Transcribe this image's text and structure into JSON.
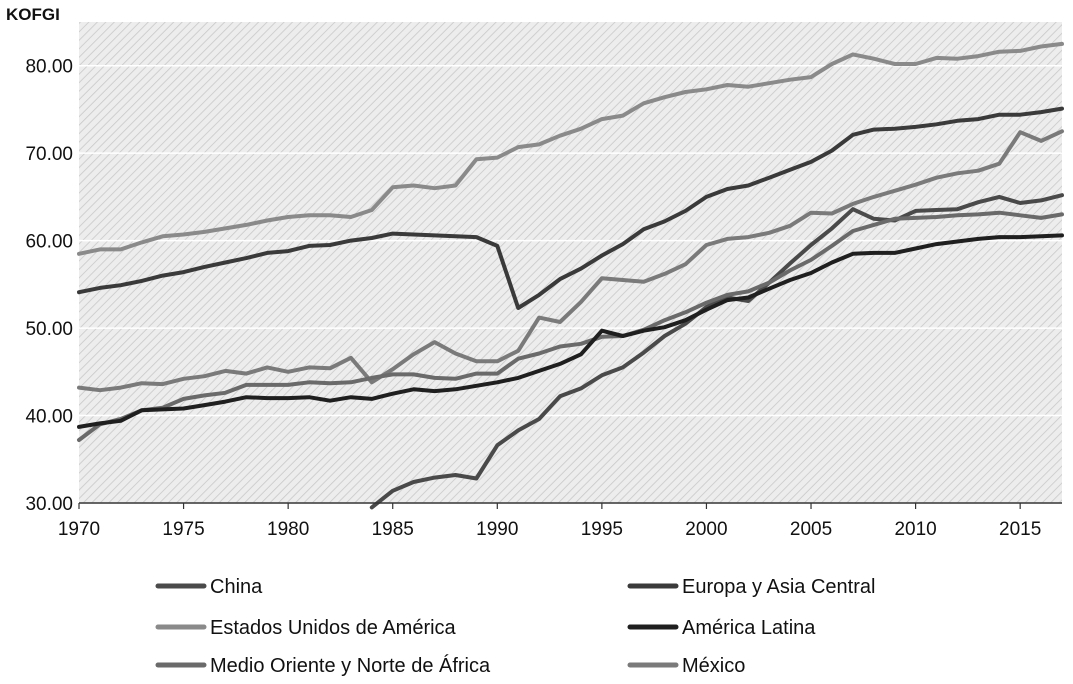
{
  "chart_data": {
    "type": "line",
    "title": "",
    "ylabel": "KOFGI",
    "xlabel": "",
    "xlim": [
      1970,
      2017
    ],
    "ylim": [
      30,
      85
    ],
    "x_ticks": [
      1970,
      1975,
      1980,
      1985,
      1990,
      1995,
      2000,
      2005,
      2010,
      2015
    ],
    "y_ticks": [
      30,
      40,
      50,
      60,
      70,
      80
    ],
    "y_tick_labels": [
      "30.00",
      "40.00",
      "50.00",
      "60.00",
      "70.00",
      "80.00"
    ],
    "legend_position": "bottom",
    "grid": true,
    "x": [
      1970,
      1971,
      1972,
      1973,
      1974,
      1975,
      1976,
      1977,
      1978,
      1979,
      1980,
      1981,
      1982,
      1983,
      1984,
      1985,
      1986,
      1987,
      1988,
      1989,
      1990,
      1991,
      1992,
      1993,
      1994,
      1995,
      1996,
      1997,
      1998,
      1999,
      2000,
      2001,
      2002,
      2003,
      2004,
      2005,
      2006,
      2007,
      2008,
      2009,
      2010,
      2011,
      2012,
      2013,
      2014,
      2015,
      2016,
      2017
    ],
    "series": [
      {
        "name": "Estados Unidos de América",
        "color": "#8a8a8a",
        "width": 4,
        "values": [
          58.5,
          59.0,
          59.0,
          59.8,
          60.5,
          60.7,
          61.0,
          61.4,
          61.8,
          62.3,
          62.7,
          62.9,
          62.9,
          62.7,
          63.5,
          66.1,
          66.3,
          66.0,
          66.3,
          69.3,
          69.5,
          70.7,
          71.0,
          72.0,
          72.8,
          73.9,
          74.3,
          75.7,
          76.4,
          77.0,
          77.3,
          77.8,
          77.6,
          78.0,
          78.4,
          78.7,
          80.2,
          81.3,
          80.8,
          80.2,
          80.2,
          80.9,
          80.8,
          81.1,
          81.6,
          81.7,
          82.2,
          82.5
        ]
      },
      {
        "name": "Europa y Asia Central",
        "color": "#3a3a3a",
        "width": 4,
        "values": [
          54.1,
          54.6,
          54.9,
          55.4,
          56.0,
          56.4,
          57.0,
          57.5,
          58.0,
          58.6,
          58.8,
          59.4,
          59.5,
          60.0,
          60.3,
          60.8,
          60.7,
          60.6,
          60.5,
          60.4,
          59.4,
          52.3,
          53.8,
          55.6,
          56.8,
          58.3,
          59.6,
          61.3,
          62.2,
          63.4,
          65.0,
          65.9,
          66.3,
          67.2,
          68.1,
          69.0,
          70.3,
          72.1,
          72.7,
          72.8,
          73.0,
          73.3,
          73.7,
          73.9,
          74.4,
          74.4,
          74.7,
          75.1
        ]
      },
      {
        "name": "México",
        "color": "#7a7a7a",
        "width": 4,
        "values": [
          43.2,
          42.9,
          43.2,
          43.7,
          43.6,
          44.2,
          44.5,
          45.1,
          44.8,
          45.5,
          45.0,
          45.5,
          45.4,
          46.6,
          43.8,
          45.3,
          47.0,
          48.4,
          47.1,
          46.2,
          46.2,
          47.4,
          51.2,
          50.7,
          53.0,
          55.7,
          55.5,
          55.3,
          56.2,
          57.3,
          59.5,
          60.2,
          60.4,
          60.9,
          61.7,
          63.2,
          63.1,
          64.2,
          65.0,
          65.7,
          66.4,
          67.2,
          67.7,
          68.0,
          68.8,
          72.4,
          71.4,
          72.5
        ]
      },
      {
        "name": "China",
        "color": "#4a4a4a",
        "width": 4,
        "values": [
          null,
          null,
          null,
          null,
          null,
          null,
          null,
          null,
          null,
          null,
          null,
          null,
          null,
          null,
          29.5,
          31.4,
          32.4,
          32.9,
          33.2,
          32.8,
          36.6,
          38.3,
          39.6,
          42.2,
          43.1,
          44.6,
          45.5,
          47.2,
          49.1,
          50.5,
          52.4,
          53.5,
          53.1,
          55.2,
          57.4,
          59.5,
          61.4,
          63.6,
          62.5,
          62.3,
          63.4,
          63.5,
          63.6,
          64.4,
          65.0,
          64.3,
          64.6,
          65.2
        ]
      },
      {
        "name": "Medio Oriente y Norte de África",
        "color": "#6a6a6a",
        "width": 4,
        "values": [
          37.2,
          39.0,
          39.6,
          40.6,
          40.9,
          41.9,
          42.3,
          42.6,
          43.5,
          43.5,
          43.5,
          43.8,
          43.7,
          43.8,
          44.3,
          44.7,
          44.7,
          44.3,
          44.2,
          44.8,
          44.8,
          46.5,
          47.1,
          47.9,
          48.2,
          49.0,
          49.1,
          49.8,
          50.9,
          51.8,
          52.9,
          53.8,
          54.2,
          55.2,
          56.6,
          57.8,
          59.4,
          61.1,
          61.8,
          62.5,
          62.6,
          62.7,
          62.9,
          63.0,
          63.2,
          62.9,
          62.6,
          63.0
        ]
      },
      {
        "name": "América Latina",
        "color": "#1f1f1f",
        "width": 4,
        "values": [
          38.7,
          39.1,
          39.4,
          40.6,
          40.7,
          40.8,
          41.2,
          41.6,
          42.1,
          42.0,
          42.0,
          42.1,
          41.7,
          42.1,
          41.9,
          42.5,
          43.0,
          42.8,
          43.0,
          43.4,
          43.8,
          44.3,
          45.1,
          45.9,
          47.0,
          49.7,
          49.1,
          49.7,
          50.1,
          50.9,
          52.1,
          53.2,
          53.5,
          54.5,
          55.5,
          56.3,
          57.5,
          58.5,
          58.6,
          58.6,
          59.1,
          59.6,
          59.9,
          60.2,
          60.4,
          60.4,
          60.5,
          60.6
        ]
      }
    ],
    "legend": [
      {
        "label": "China",
        "series": 3,
        "col": 0,
        "row": 0
      },
      {
        "label": "Europa y Asia Central",
        "series": 1,
        "col": 1,
        "row": 0
      },
      {
        "label": "Estados Unidos de América",
        "series": 0,
        "col": 0,
        "row": 1
      },
      {
        "label": "América Latina",
        "series": 5,
        "col": 1,
        "row": 1
      },
      {
        "label": "Medio Oriente y Norte de África",
        "series": 4,
        "col": 0,
        "row": 2
      },
      {
        "label": "México",
        "series": 2,
        "col": 1,
        "row": 2
      }
    ]
  }
}
